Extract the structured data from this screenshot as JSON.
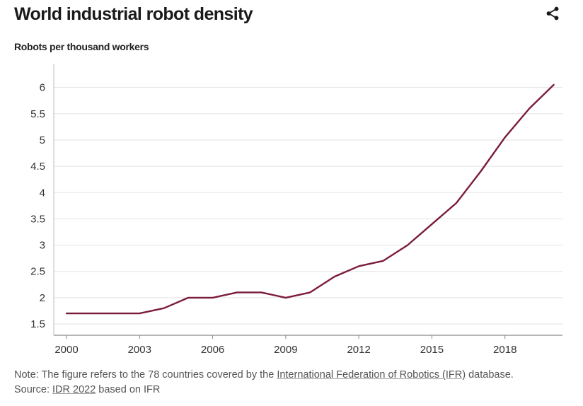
{
  "title": "World industrial robot density",
  "share_icon": "share-icon",
  "note": {
    "prefix": "Note: The figure refers to the 78 countries covered by the ",
    "link_text": "International Federation of Robotics (IFR)",
    "suffix": " database.",
    "source_prefix": "Source: ",
    "source_link": "IDR 2022",
    "source_suffix": " based on IFR"
  },
  "chart_data": {
    "type": "line",
    "title": "World industrial robot density",
    "xlabel": "",
    "ylabel": "Robots per thousand workers",
    "xlim": [
      2000,
      2020
    ],
    "ylim": [
      1.5,
      6
    ],
    "x_ticks": [
      2000,
      2003,
      2006,
      2009,
      2012,
      2015,
      2018
    ],
    "y_ticks": [
      1.5,
      2,
      2.5,
      3,
      3.5,
      4,
      4.5,
      5,
      5.5,
      6
    ],
    "y_tick_labels": [
      "1.5",
      "2",
      "2.5",
      "3",
      "3.5",
      "4",
      "4.5",
      "5",
      "5.5",
      "6"
    ],
    "grid": true,
    "line_color": "#7b1c3e",
    "series": [
      {
        "name": "Robot density",
        "x": [
          2000,
          2001,
          2002,
          2003,
          2004,
          2005,
          2006,
          2007,
          2008,
          2009,
          2010,
          2011,
          2012,
          2013,
          2014,
          2015,
          2016,
          2017,
          2018,
          2019,
          2020
        ],
        "values": [
          1.7,
          1.7,
          1.7,
          1.7,
          1.8,
          2.0,
          2.0,
          2.1,
          2.1,
          2.0,
          2.1,
          2.4,
          2.6,
          2.7,
          3.0,
          3.4,
          3.8,
          4.4,
          5.05,
          5.6,
          6.05
        ]
      }
    ]
  }
}
